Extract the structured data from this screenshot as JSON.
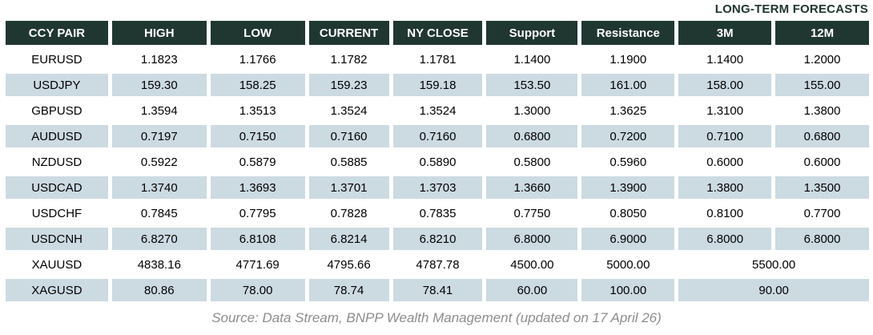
{
  "page": {
    "long_term_label": "LONG-TERM FORECASTS",
    "source_text": "Source: Data Stream, BNPP Wealth Management (updated on 17 April 26)"
  },
  "colors": {
    "header_bg": "#203731",
    "header_text": "#ffffff",
    "stripe_bg": "#ccdae2",
    "row_bg": "#ffffff",
    "cell_text": "#000000",
    "label_text": "#1c352f",
    "source_text": "#8d8d8d"
  },
  "table": {
    "columns": [
      "CCY PAIR",
      "HIGH",
      "LOW",
      "CURRENT",
      "NY CLOSE",
      "Support",
      "Resistance",
      "3M",
      "12M"
    ],
    "rows": [
      {
        "pair": "EURUSD",
        "high": "1.1823",
        "low": "1.1766",
        "current": "1.1782",
        "ny_close": "1.1781",
        "support": "1.1400",
        "resistance": "1.1900",
        "m3": "1.1400",
        "m12": "1.2000"
      },
      {
        "pair": "USDJPY",
        "high": "159.30",
        "low": "158.25",
        "current": "159.23",
        "ny_close": "159.18",
        "support": "153.50",
        "resistance": "161.00",
        "m3": "158.00",
        "m12": "155.00"
      },
      {
        "pair": "GBPUSD",
        "high": "1.3594",
        "low": "1.3513",
        "current": "1.3524",
        "ny_close": "1.3524",
        "support": "1.3000",
        "resistance": "1.3625",
        "m3": "1.3100",
        "m12": "1.3800"
      },
      {
        "pair": "AUDUSD",
        "high": "0.7197",
        "low": "0.7150",
        "current": "0.7160",
        "ny_close": "0.7160",
        "support": "0.6800",
        "resistance": "0.7200",
        "m3": "0.7100",
        "m12": "0.6800"
      },
      {
        "pair": "NZDUSD",
        "high": "0.5922",
        "low": "0.5879",
        "current": "0.5885",
        "ny_close": "0.5890",
        "support": "0.5800",
        "resistance": "0.5960",
        "m3": "0.6000",
        "m12": "0.6000"
      },
      {
        "pair": "USDCAD",
        "high": "1.3740",
        "low": "1.3693",
        "current": "1.3701",
        "ny_close": "1.3703",
        "support": "1.3660",
        "resistance": "1.3900",
        "m3": "1.3800",
        "m12": "1.3500"
      },
      {
        "pair": "USDCHF",
        "high": "0.7845",
        "low": "0.7795",
        "current": "0.7828",
        "ny_close": "0.7835",
        "support": "0.7750",
        "resistance": "0.8050",
        "m3": "0.8100",
        "m12": "0.7700"
      },
      {
        "pair": "USDCNH",
        "high": "6.8270",
        "low": "6.8108",
        "current": "6.8214",
        "ny_close": "6.8210",
        "support": "6.8000",
        "resistance": "6.9000",
        "m3": "6.8000",
        "m12": "6.8000"
      },
      {
        "pair": "XAUUSD",
        "high": "4838.16",
        "low": "4771.69",
        "current": "4795.66",
        "ny_close": "4787.78",
        "support": "4500.00",
        "resistance": "5000.00",
        "long_term": "5500.00"
      },
      {
        "pair": "XAGUSD",
        "high": "80.86",
        "low": "78.00",
        "current": "78.74",
        "ny_close": "78.41",
        "support": "60.00",
        "resistance": "100.00",
        "long_term": "90.00"
      }
    ]
  }
}
